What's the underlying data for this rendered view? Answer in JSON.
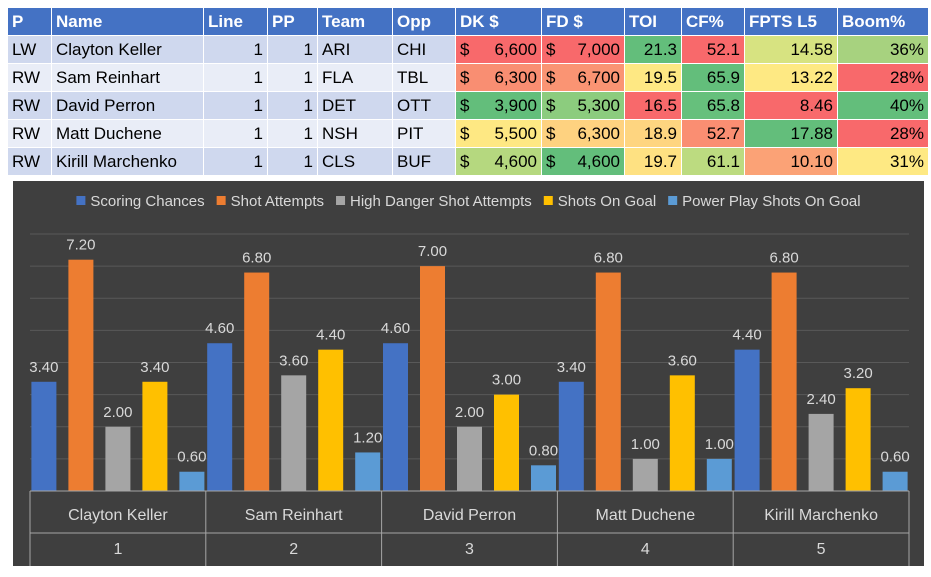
{
  "table": {
    "headers": [
      "P",
      "Name",
      "Line",
      "PP",
      "Team",
      "Opp",
      "DK $",
      "FD $",
      "TOI",
      "CF%",
      "FPTS L5",
      "Boom%"
    ],
    "rows": [
      {
        "pos": "LW",
        "name": "Clayton Keller",
        "line": "1",
        "pp": "1",
        "team": "ARI",
        "opp": "CHI",
        "dk": "6,600",
        "fd": "7,000",
        "toi": "21.3",
        "cf": "52.1",
        "fpts": "14.58",
        "boom": "36%"
      },
      {
        "pos": "RW",
        "name": "Sam Reinhart",
        "line": "1",
        "pp": "1",
        "team": "FLA",
        "opp": "TBL",
        "dk": "6,300",
        "fd": "6,700",
        "toi": "19.5",
        "cf": "65.9",
        "fpts": "13.22",
        "boom": "28%"
      },
      {
        "pos": "RW",
        "name": "David Perron",
        "line": "1",
        "pp": "1",
        "team": "DET",
        "opp": "OTT",
        "dk": "3,900",
        "fd": "5,300",
        "toi": "16.5",
        "cf": "65.8",
        "fpts": "8.46",
        "boom": "40%"
      },
      {
        "pos": "RW",
        "name": "Matt Duchene",
        "line": "1",
        "pp": "1",
        "team": "NSH",
        "opp": "PIT",
        "dk": "5,500",
        "fd": "6,300",
        "toi": "18.9",
        "cf": "52.7",
        "fpts": "17.88",
        "boom": "28%"
      },
      {
        "pos": "RW",
        "name": "Kirill Marchenko",
        "line": "1",
        "pp": "1",
        "team": "CLS",
        "opp": "BUF",
        "dk": "4,600",
        "fd": "4,600",
        "toi": "19.7",
        "cf": "61.1",
        "fpts": "10.10",
        "boom": "31%"
      }
    ],
    "currency_symbol": "$",
    "cell_colors": {
      "dk": [
        "#f8696b",
        "#f98e72",
        "#63be7b",
        "#fee883",
        "#b5d87f"
      ],
      "fd": [
        "#f8696b",
        "#fa9473",
        "#8ccc7e",
        "#fed280",
        "#63be7b"
      ],
      "toi": [
        "#63be7b",
        "#fee883",
        "#f8696b",
        "#fed580",
        "#fee182"
      ],
      "cf": [
        "#f8696b",
        "#63be7b",
        "#66c07c",
        "#fa8e72",
        "#bcdb80"
      ],
      "fpts": [
        "#d7e381",
        "#fee983",
        "#f8696b",
        "#63be7b",
        "#fba276"
      ],
      "boom": [
        "#a7d27f",
        "#f8696b",
        "#63be7b",
        "#f8696b",
        "#fee983"
      ]
    }
  },
  "chart_data": {
    "type": "bar",
    "title": "",
    "xlabel": "",
    "ylabel": "",
    "ylim": [
      0,
      8
    ],
    "gridlines": true,
    "legend_position": "top",
    "background": "#3f3f3f",
    "categories": [
      "Clayton Keller",
      "Sam Reinhart",
      "David Perron",
      "Matt Duchene",
      "Kirill Marchenko"
    ],
    "category_index": [
      "1",
      "2",
      "3",
      "4",
      "5"
    ],
    "series": [
      {
        "name": "Scoring Chances",
        "color": "#4472c4",
        "values": [
          3.4,
          4.6,
          4.6,
          3.4,
          4.4
        ]
      },
      {
        "name": "Shot Attempts",
        "color": "#ed7d31",
        "values": [
          7.2,
          6.8,
          7.0,
          6.8,
          6.8
        ]
      },
      {
        "name": "High Danger Shot Attempts",
        "color": "#a5a5a5",
        "values": [
          2.0,
          3.6,
          2.0,
          1.0,
          2.4
        ]
      },
      {
        "name": "Shots On Goal",
        "color": "#ffc000",
        "values": [
          3.4,
          4.4,
          3.0,
          3.6,
          3.2
        ]
      },
      {
        "name": "Power Play Shots On Goal",
        "color": "#5b9bd5",
        "values": [
          0.6,
          1.2,
          0.8,
          1.0,
          0.6
        ]
      }
    ]
  }
}
